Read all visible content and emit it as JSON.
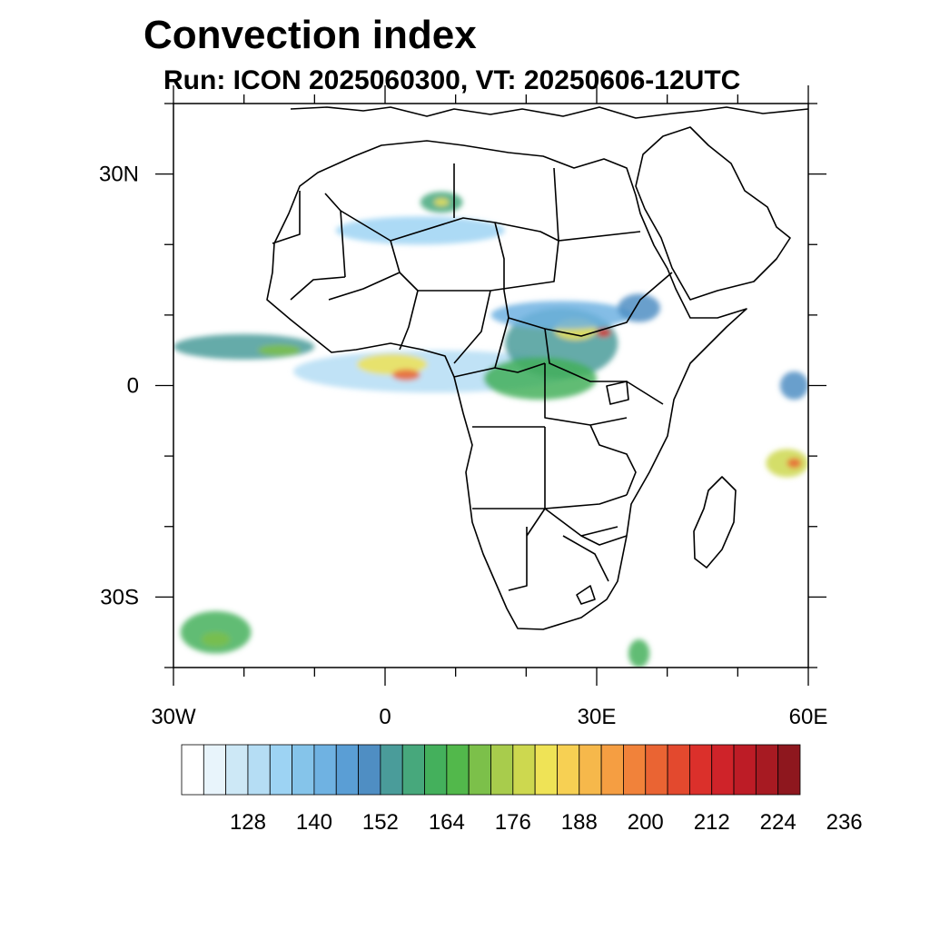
{
  "title": "Convection index",
  "subtitle": "Run: ICON 2025060300,  VT: 20250606-12UTC",
  "map": {
    "lon_range": [
      -30,
      60
    ],
    "lat_range": [
      -40,
      40
    ],
    "lat_ticks": [
      {
        "value": 30,
        "label": "30N"
      },
      {
        "value": 0,
        "label": "0"
      },
      {
        "value": -30,
        "label": "30S"
      }
    ],
    "lon_ticks": [
      {
        "value": -30,
        "label": "30W"
      },
      {
        "value": 0,
        "label": "0"
      },
      {
        "value": 30,
        "label": "30E"
      },
      {
        "value": 60,
        "label": "60E"
      }
    ]
  },
  "colorbar": {
    "colors": [
      "#ffffff",
      "#e8f4fb",
      "#cde8f6",
      "#b5ddf4",
      "#9dd3f3",
      "#85c4ea",
      "#6fb2e2",
      "#5a9ed5",
      "#4f8ec3",
      "#4a9c9a",
      "#47a87c",
      "#44b05c",
      "#52b84b",
      "#7cc04a",
      "#a8cc4c",
      "#cdd84f",
      "#efe356",
      "#f7d053",
      "#f6b84b",
      "#f59e42",
      "#f1823a",
      "#ea6433",
      "#e3492e",
      "#db302b",
      "#cf2329",
      "#bd1c26",
      "#a71a22",
      "#8e171e"
    ],
    "labels": [
      "128",
      "140",
      "152",
      "164",
      "176",
      "188",
      "200",
      "212",
      "224",
      "236"
    ]
  },
  "convection_areas": [
    {
      "lon": 7,
      "lat": 2,
      "rx": 20,
      "ry": 3,
      "level": 3
    },
    {
      "lon": 1,
      "lat": 3,
      "rx": 5,
      "ry": 1.5,
      "level": 16
    },
    {
      "lon": 3,
      "lat": 1.5,
      "rx": 2,
      "ry": 0.8,
      "level": 21
    },
    {
      "lon": -20,
      "lat": 5.5,
      "rx": 10,
      "ry": 1.8,
      "level": 9
    },
    {
      "lon": -15,
      "lat": 5,
      "rx": 3,
      "ry": 0.8,
      "level": 13
    },
    {
      "lon": 25,
      "lat": 6,
      "rx": 8,
      "ry": 5,
      "level": 9
    },
    {
      "lon": 27,
      "lat": 8,
      "rx": 3,
      "ry": 1.5,
      "level": 16
    },
    {
      "lon": 31,
      "lat": 7.5,
      "rx": 1,
      "ry": 0.6,
      "level": 23
    },
    {
      "lon": 22,
      "lat": 1,
      "rx": 8,
      "ry": 3,
      "level": 11
    },
    {
      "lon": 25,
      "lat": 10,
      "rx": 10,
      "ry": 2,
      "level": 6
    },
    {
      "lon": 36,
      "lat": 11,
      "rx": 3,
      "ry": 2,
      "level": 8
    },
    {
      "lon": 8,
      "lat": 26,
      "rx": 3,
      "ry": 1.5,
      "level": 10
    },
    {
      "lon": 8,
      "lat": 26,
      "rx": 1,
      "ry": 0.5,
      "level": 16
    },
    {
      "lon": 5,
      "lat": 22,
      "rx": 12,
      "ry": 2,
      "level": 4
    },
    {
      "lon": -24,
      "lat": -35,
      "rx": 5,
      "ry": 3,
      "level": 11
    },
    {
      "lon": -24,
      "lat": -36,
      "rx": 2,
      "ry": 1,
      "level": 13
    },
    {
      "lon": 57,
      "lat": -11,
      "rx": 3,
      "ry": 2,
      "level": 15
    },
    {
      "lon": 58,
      "lat": -11,
      "rx": 1,
      "ry": 0.7,
      "level": 21
    },
    {
      "lon": 58,
      "lat": 0,
      "rx": 2,
      "ry": 2,
      "level": 8
    },
    {
      "lon": 36,
      "lat": -38,
      "rx": 1.5,
      "ry": 2,
      "level": 11
    }
  ]
}
